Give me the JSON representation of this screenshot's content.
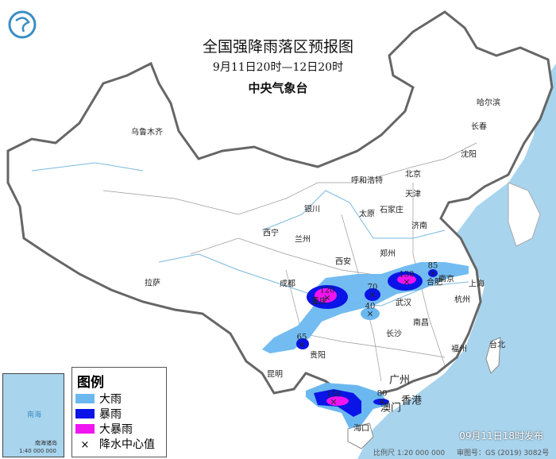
{
  "header": {
    "title": "全国强降雨落区预报图",
    "period": "9月11日20时—12日20时",
    "issuer": "中央气象台"
  },
  "logo": {
    "name": "cma-logo-icon"
  },
  "legend": {
    "title": "图例",
    "items": [
      {
        "label": "大雨",
        "color": "#6bb8f0"
      },
      {
        "label": "暴雨",
        "color": "#0a14e6"
      },
      {
        "label": "大暴雨",
        "color": "#f014f0"
      },
      {
        "label": "降水中心值",
        "symbol": "×"
      }
    ]
  },
  "cities": [
    "乌鲁木齐",
    "哈尔滨",
    "长春",
    "沈阳",
    "呼和浩特",
    "北京",
    "天津",
    "石家庄",
    "太原",
    "银川",
    "西宁",
    "兰州",
    "济南",
    "郑州",
    "西安",
    "合肥",
    "南京",
    "上海",
    "武汉",
    "成都",
    "重庆",
    "杭州",
    "南昌",
    "长沙",
    "拉萨",
    "贵阳",
    "昆明",
    "福州",
    "台北",
    "广州",
    "香港",
    "澳门",
    "海口"
  ],
  "rain_centers": [
    "120",
    "70",
    "40",
    "130",
    "85",
    "65",
    "150",
    "80"
  ],
  "inset": {
    "sea": "南海",
    "islands": "南海诸岛",
    "scale": "1:40 000 000"
  },
  "footer": {
    "issued": "09月11日18时发布",
    "scale": "比例尺 1:20 000 000",
    "approval": "审图号：GS (2019) 3082号"
  },
  "colors": {
    "sea": "#a8d4ee",
    "heavy": "#6bb8f0",
    "rainstorm": "#0a14e6",
    "severe": "#f014f0"
  }
}
